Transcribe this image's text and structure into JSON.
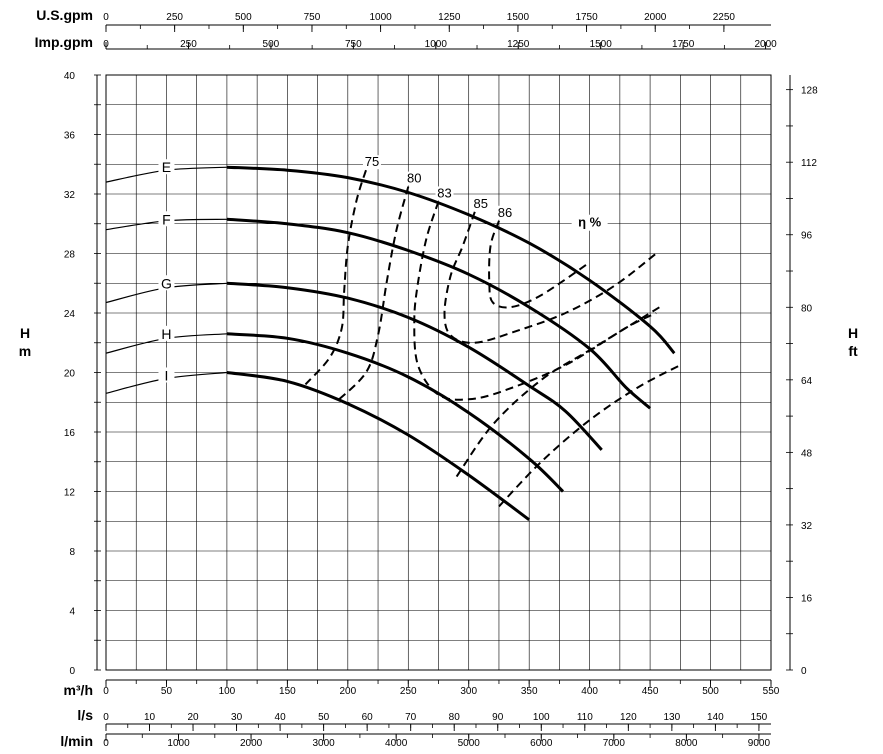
{
  "chart_data": {
    "type": "line",
    "axes": {
      "x_bottom": [
        {
          "unit": "m³/h",
          "ticks": [
            "0",
            "50",
            "100",
            "150",
            "200",
            "250",
            "300",
            "350",
            "400",
            "450",
            "500",
            "550"
          ]
        },
        {
          "unit": "l/s",
          "ticks": [
            "0",
            "10",
            "20",
            "30",
            "40",
            "50",
            "60",
            "70",
            "80",
            "90",
            "100",
            "110",
            "120",
            "130",
            "140",
            "150"
          ]
        },
        {
          "unit": "l/min",
          "ticks": [
            "0",
            "1000",
            "2000",
            "3000",
            "4000",
            "5000",
            "6000",
            "7000",
            "8000",
            "9000"
          ]
        }
      ],
      "x_top": [
        {
          "unit": "U.S.gpm",
          "ticks": [
            "0",
            "250",
            "500",
            "750",
            "1000",
            "1250",
            "1500",
            "1750",
            "2000",
            "2250"
          ]
        },
        {
          "unit": "Imp.gpm",
          "ticks": [
            "0",
            "250",
            "500",
            "750",
            "1000",
            "1250",
            "1500",
            "1750",
            "2000"
          ]
        }
      ],
      "y_left": {
        "label_top": "H",
        "label_bottom": "m",
        "ticks": [
          "0",
          "4",
          "8",
          "12",
          "16",
          "20",
          "24",
          "28",
          "32",
          "36",
          "40"
        ],
        "ylim": [
          0,
          40
        ]
      },
      "y_right": {
        "label_top": "H",
        "label_bottom": "ft",
        "ticks": [
          "0",
          "16",
          "32",
          "48",
          "64",
          "80",
          "96",
          "112",
          "128"
        ]
      },
      "xlim": [
        0,
        550
      ],
      "grid": true
    },
    "series": [
      {
        "name": "E",
        "points": [
          [
            0,
            32.8
          ],
          [
            50,
            33.6
          ],
          [
            100,
            33.8
          ],
          [
            150,
            33.6
          ],
          [
            200,
            33.1
          ],
          [
            250,
            32.1
          ],
          [
            300,
            30.6
          ],
          [
            350,
            28.7
          ],
          [
            400,
            26.2
          ],
          [
            450,
            23.1
          ],
          [
            470,
            21.3
          ]
        ]
      },
      {
        "name": "F",
        "points": [
          [
            0,
            29.6
          ],
          [
            50,
            30.2
          ],
          [
            100,
            30.3
          ],
          [
            150,
            30.0
          ],
          [
            200,
            29.4
          ],
          [
            250,
            28.2
          ],
          [
            300,
            26.6
          ],
          [
            350,
            24.4
          ],
          [
            400,
            21.6
          ],
          [
            430,
            19.0
          ],
          [
            450,
            17.6
          ]
        ]
      },
      {
        "name": "G",
        "points": [
          [
            0,
            24.7
          ],
          [
            50,
            25.7
          ],
          [
            100,
            26.0
          ],
          [
            150,
            25.7
          ],
          [
            200,
            25.0
          ],
          [
            250,
            23.7
          ],
          [
            300,
            21.7
          ],
          [
            350,
            19.1
          ],
          [
            380,
            17.4
          ],
          [
            410,
            14.8
          ]
        ]
      },
      {
        "name": "H",
        "points": [
          [
            0,
            21.3
          ],
          [
            50,
            22.3
          ],
          [
            100,
            22.6
          ],
          [
            150,
            22.3
          ],
          [
            200,
            21.3
          ],
          [
            250,
            19.7
          ],
          [
            300,
            17.3
          ],
          [
            350,
            14.2
          ],
          [
            378,
            12.0
          ]
        ]
      },
      {
        "name": "I",
        "points": [
          [
            0,
            18.6
          ],
          [
            50,
            19.6
          ],
          [
            100,
            20.0
          ],
          [
            150,
            19.4
          ],
          [
            200,
            17.9
          ],
          [
            250,
            15.8
          ],
          [
            300,
            13.1
          ],
          [
            350,
            10.1
          ]
        ]
      }
    ],
    "efficiency_label": "η %",
    "efficiency_curves": [
      {
        "name": "75",
        "points": [
          [
            215,
            33.6
          ],
          [
            207,
            31.5
          ],
          [
            200,
            28.5
          ],
          [
            197,
            25.5
          ],
          [
            195,
            23.0
          ],
          [
            185,
            21.0
          ],
          [
            165,
            19.2
          ]
        ]
      },
      {
        "name": "80",
        "points": [
          [
            250,
            32.5
          ],
          [
            240,
            29.5
          ],
          [
            232,
            26.0
          ],
          [
            225,
            22.5
          ],
          [
            215,
            20.0
          ],
          [
            190,
            18.0
          ]
        ]
      },
      {
        "name": "83",
        "points": [
          [
            275,
            31.5
          ],
          [
            265,
            29.0
          ],
          [
            258,
            26.0
          ],
          [
            255,
            23.5
          ],
          [
            258,
            20.5
          ],
          [
            275,
            18.5
          ],
          [
            300,
            18.2
          ],
          [
            330,
            18.8
          ],
          [
            380,
            20.5
          ],
          [
            430,
            23.0
          ],
          [
            455,
            24.0
          ]
        ]
      },
      {
        "name": "85",
        "points": [
          [
            305,
            30.8
          ],
          [
            295,
            28.5
          ],
          [
            285,
            26.5
          ],
          [
            280,
            24.0
          ],
          [
            285,
            22.5
          ],
          [
            305,
            22.0
          ],
          [
            340,
            22.8
          ],
          [
            380,
            24.0
          ],
          [
            420,
            25.8
          ],
          [
            455,
            28.0
          ]
        ]
      },
      {
        "name": "86",
        "points": [
          [
            325,
            30.2
          ],
          [
            318,
            28.5
          ],
          [
            317,
            26.0
          ],
          [
            320,
            24.7
          ],
          [
            335,
            24.4
          ],
          [
            360,
            25.2
          ],
          [
            400,
            27.4
          ]
        ]
      },
      {
        "name": "",
        "points": [
          [
            290,
            13.0
          ],
          [
            320,
            16.5
          ],
          [
            360,
            19.5
          ],
          [
            400,
            21.5
          ],
          [
            440,
            23.5
          ],
          [
            460,
            24.5
          ]
        ]
      },
      {
        "name": "",
        "points": [
          [
            325,
            11.0
          ],
          [
            360,
            14.0
          ],
          [
            400,
            16.8
          ],
          [
            440,
            19.0
          ],
          [
            475,
            20.5
          ]
        ]
      }
    ],
    "curve_label_pos": {
      "E": 33.8,
      "F": 30.3,
      "G": 26.0,
      "H": 22.6,
      "I": 19.8
    }
  }
}
